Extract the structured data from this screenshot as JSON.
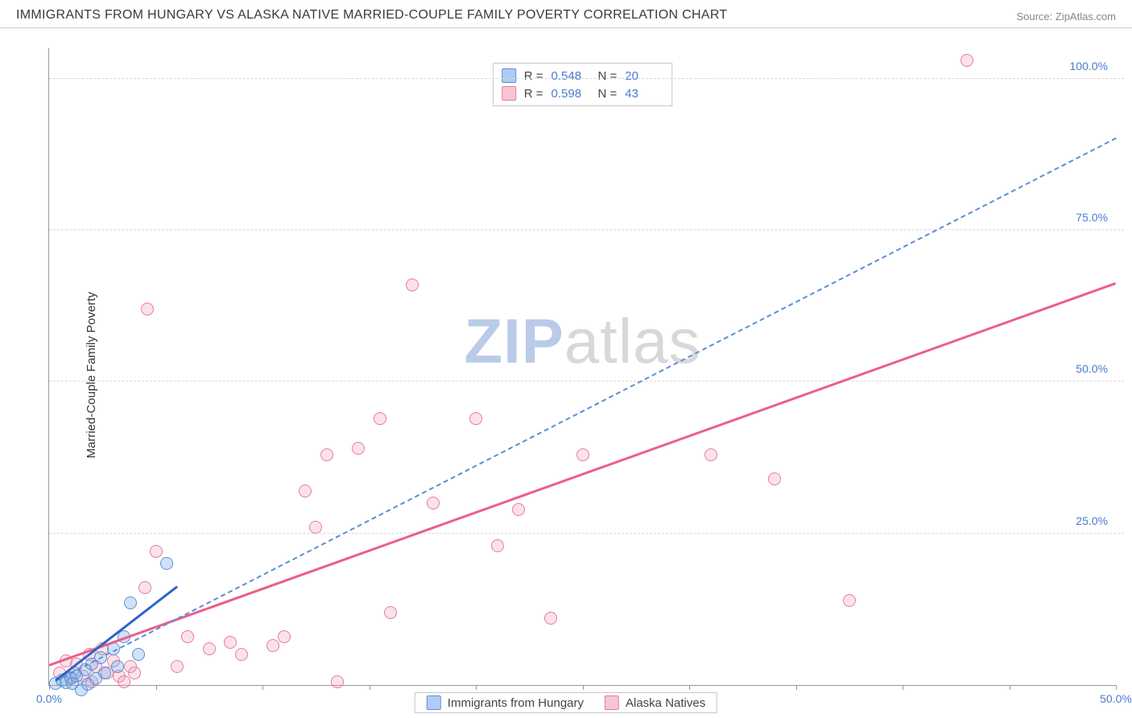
{
  "header": {
    "title": "IMMIGRANTS FROM HUNGARY VS ALASKA NATIVE MARRIED-COUPLE FAMILY POVERTY CORRELATION CHART",
    "source": "Source: ZipAtlas.com"
  },
  "axes": {
    "y_title": "Married-Couple Family Poverty",
    "x_min": 0,
    "x_max": 50,
    "y_min": 0,
    "y_max": 105,
    "y_ticks": [
      25,
      50,
      75,
      100
    ],
    "y_tick_labels": [
      "25.0%",
      "50.0%",
      "75.0%",
      "100.0%"
    ],
    "x_ticks": [
      0,
      5,
      10,
      15,
      20,
      25,
      30,
      35,
      40,
      45,
      50
    ],
    "x_label_min": "0.0%",
    "x_label_max": "50.0%",
    "grid_color": "#d8d8d8",
    "axis_color": "#999999",
    "tick_label_color": "#4a7bd0"
  },
  "watermark": {
    "zip": "ZIP",
    "atlas": "atlas"
  },
  "r_box": {
    "rows": [
      {
        "series": "blue",
        "r_label": "R =",
        "r_value": "0.548",
        "n_label": "N =",
        "n_value": "20"
      },
      {
        "series": "pink",
        "r_label": "R =",
        "r_value": "0.598",
        "n_label": "N =",
        "n_value": "43"
      }
    ]
  },
  "bottom_legend": {
    "items": [
      {
        "series": "blue",
        "label": "Immigrants from Hungary"
      },
      {
        "series": "pink",
        "label": "Alaska Natives"
      }
    ]
  },
  "trend_lines": {
    "blue_solid": {
      "x1": 0.3,
      "y1": 0.5,
      "x2": 6.0,
      "y2": 16.0,
      "color": "#2e63c9",
      "width": 3
    },
    "blue_dash": {
      "x1": 0.3,
      "y1": 0.5,
      "x2": 50.0,
      "y2": 90.0,
      "color": "#5b8fd6",
      "width": 2,
      "dashed": true
    },
    "pink_solid": {
      "x1": 0.0,
      "y1": 3.0,
      "x2": 50.0,
      "y2": 66.0,
      "color": "#ec5e8a",
      "width": 3
    }
  },
  "series": {
    "blue": {
      "color_fill": "rgba(120,172,233,0.35)",
      "color_stroke": "#5b8fd6",
      "marker_radius": 8,
      "points": [
        [
          0.3,
          0.3
        ],
        [
          0.6,
          0.8
        ],
        [
          0.8,
          0.4
        ],
        [
          1.0,
          1.2
        ],
        [
          1.2,
          2.0
        ],
        [
          1.1,
          0.3
        ],
        [
          1.5,
          -0.8
        ],
        [
          1.7,
          2.5
        ],
        [
          1.8,
          0.2
        ],
        [
          2.0,
          3.5
        ],
        [
          2.2,
          1.0
        ],
        [
          2.4,
          4.5
        ],
        [
          2.6,
          2.0
        ],
        [
          3.0,
          6.0
        ],
        [
          3.2,
          3.0
        ],
        [
          3.5,
          8.0
        ],
        [
          3.8,
          13.5
        ],
        [
          4.2,
          5.0
        ],
        [
          5.5,
          20.0
        ],
        [
          1.3,
          1.5
        ]
      ]
    },
    "pink": {
      "color_fill": "rgba(240,150,175,0.28)",
      "color_stroke": "#e67ba0",
      "marker_radius": 8,
      "points": [
        [
          0.5,
          2.0
        ],
        [
          0.8,
          4.0
        ],
        [
          1.0,
          1.0
        ],
        [
          1.3,
          3.5
        ],
        [
          1.6,
          1.5
        ],
        [
          1.9,
          5.0
        ],
        [
          2.2,
          3.0
        ],
        [
          2.5,
          6.0
        ],
        [
          2.7,
          2.0
        ],
        [
          3.0,
          4.0
        ],
        [
          3.3,
          1.5
        ],
        [
          3.8,
          3.0
        ],
        [
          4.5,
          16.0
        ],
        [
          4.6,
          62.0
        ],
        [
          5.0,
          22.0
        ],
        [
          6.0,
          3.0
        ],
        [
          6.5,
          8.0
        ],
        [
          7.5,
          6.0
        ],
        [
          8.5,
          7.0
        ],
        [
          9.0,
          5.0
        ],
        [
          10.5,
          6.5
        ],
        [
          11.0,
          8.0
        ],
        [
          12.0,
          32.0
        ],
        [
          12.5,
          26.0
        ],
        [
          13.0,
          38.0
        ],
        [
          13.5,
          0.5
        ],
        [
          14.5,
          39.0
        ],
        [
          15.5,
          44.0
        ],
        [
          16.0,
          12.0
        ],
        [
          17.0,
          66.0
        ],
        [
          18.0,
          30.0
        ],
        [
          20.0,
          44.0
        ],
        [
          21.0,
          23.0
        ],
        [
          22.0,
          29.0
        ],
        [
          23.5,
          11.0
        ],
        [
          25.0,
          38.0
        ],
        [
          31.0,
          38.0
        ],
        [
          34.0,
          34.0
        ],
        [
          37.5,
          14.0
        ],
        [
          43.0,
          103.0
        ],
        [
          2.0,
          0.5
        ],
        [
          3.5,
          0.5
        ],
        [
          4.0,
          2.0
        ]
      ]
    }
  }
}
